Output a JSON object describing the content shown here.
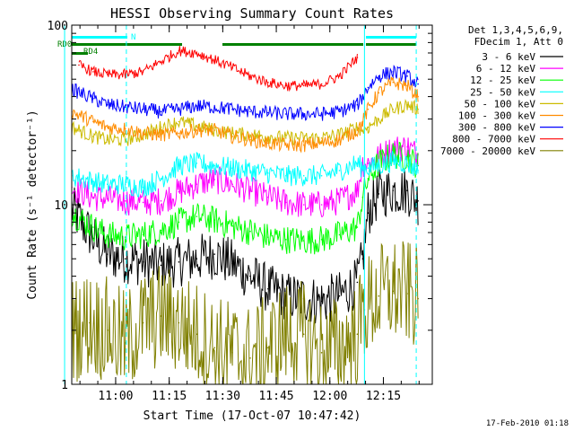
{
  "chart_data": {
    "type": "line",
    "title": "HESSI Observing Summary Count Rates",
    "xlabel": "Start Time (17-Oct-07 10:47:42)",
    "ylabel": "Count Rate (s⁻¹ detector⁻¹)",
    "x_unit": "minutes after 10:47:42",
    "xlim": [
      0,
      101
    ],
    "ylim": [
      1,
      100
    ],
    "y_scale": "log",
    "grid": false,
    "legend_position": "top-right",
    "x_ticks": [
      {
        "label": "11:00",
        "value": 12.3
      },
      {
        "label": "11:15",
        "value": 27.3
      },
      {
        "label": "11:30",
        "value": 42.3
      },
      {
        "label": "11:45",
        "value": 57.3
      },
      {
        "label": "12:00",
        "value": 72.3
      },
      {
        "label": "12:15",
        "value": 87.3
      }
    ],
    "y_ticks": [
      {
        "label": "1",
        "value": 1
      },
      {
        "label": "10",
        "value": 10
      },
      {
        "label": "100",
        "value": 100
      }
    ],
    "legend_header": [
      "Det 1,3,4,5,6,9,",
      "FDecim 1, Att 0"
    ],
    "annotations": {
      "bar_labels": [
        "RD0",
        "RD4",
        "N"
      ],
      "footer_date": "17-Feb-2010 01:18"
    },
    "vertical_markers": [
      {
        "x": -2.0,
        "color": "#00ffff",
        "style": "solid"
      },
      {
        "x": 82.0,
        "color": "#00ffff",
        "style": "solid"
      },
      {
        "x": 15.3,
        "color": "#00ffff",
        "style": "dashed"
      },
      {
        "x": 96.5,
        "color": "#00ffff",
        "style": "dashed"
      }
    ],
    "series": [
      {
        "name": "3 - 6 keV",
        "color": "#000000",
        "x": [
          0,
          6,
          10,
          15,
          20,
          25,
          30,
          35,
          40,
          45,
          50,
          55,
          60,
          65,
          70,
          75,
          80,
          81.5,
          83,
          86,
          90,
          94,
          97
        ],
        "y": [
          9.5,
          6.5,
          5.3,
          5.0,
          4.8,
          4.6,
          4.8,
          5.0,
          5.3,
          4.7,
          4.0,
          3.4,
          3.1,
          3.0,
          2.9,
          3.1,
          3.7,
          5.0,
          9.0,
          11.5,
          12.0,
          12.0,
          10.5
        ]
      },
      {
        "name": "6 - 12 keV",
        "color": "#ff00ff",
        "x": [
          0,
          6,
          10,
          15,
          20,
          25,
          30,
          35,
          40,
          45,
          50,
          55,
          60,
          65,
          70,
          75,
          80,
          81.5,
          83,
          86,
          90,
          94,
          97
        ],
        "y": [
          12.5,
          11.0,
          10.8,
          10.5,
          10.3,
          10.5,
          11.8,
          13.0,
          13.8,
          13.0,
          12.0,
          11.0,
          10.3,
          10.0,
          10.0,
          10.5,
          12.0,
          17.0,
          17.0,
          18.5,
          20.5,
          21.0,
          19.0
        ]
      },
      {
        "name": "12 - 25 keV",
        "color": "#00ff00",
        "x": [
          0,
          6,
          10,
          15,
          20,
          25,
          30,
          35,
          40,
          45,
          50,
          55,
          60,
          65,
          70,
          75,
          80,
          81.5,
          83,
          86,
          90,
          94,
          97
        ],
        "y": [
          9.0,
          7.5,
          6.8,
          6.6,
          6.8,
          7.2,
          8.0,
          8.6,
          8.2,
          7.6,
          7.1,
          6.6,
          6.4,
          6.3,
          6.4,
          6.8,
          7.5,
          11.0,
          14.0,
          17.0,
          19.0,
          18.5,
          16.5
        ]
      },
      {
        "name": "25 - 50 keV",
        "color": "#00ffff",
        "x": [
          0,
          6,
          10,
          15,
          20,
          25,
          30,
          35,
          40,
          45,
          50,
          55,
          60,
          65,
          70,
          75,
          80,
          81.5,
          83,
          86,
          90,
          94,
          97
        ],
        "y": [
          14.5,
          13.5,
          13.0,
          13.0,
          12.5,
          14.0,
          16.5,
          17.0,
          16.5,
          16.0,
          15.5,
          15.0,
          14.5,
          14.5,
          14.5,
          15.5,
          17.0,
          16.0,
          16.0,
          16.5,
          17.5,
          17.0,
          15.5
        ]
      },
      {
        "name": "50 - 100 keV",
        "color": "#ccbb00",
        "x": [
          0,
          6,
          10,
          15,
          20,
          25,
          30,
          35,
          40,
          45,
          50,
          55,
          60,
          65,
          70,
          75,
          80,
          81.5,
          83,
          86,
          90,
          94,
          97
        ],
        "y": [
          27.0,
          24.0,
          23.0,
          23.0,
          24.5,
          27.0,
          29.0,
          27.5,
          26.0,
          25.0,
          24.5,
          24.0,
          23.5,
          23.5,
          23.5,
          24.5,
          27.0,
          26.0,
          27.0,
          30.0,
          34.0,
          36.0,
          34.0
        ]
      },
      {
        "name": "100 - 300 keV",
        "color": "#ff8c00",
        "x": [
          0,
          6,
          10,
          15,
          20,
          25,
          30,
          35,
          40,
          45,
          50,
          55,
          60,
          65,
          70,
          75,
          80,
          81.5,
          83,
          86,
          90,
          94,
          97
        ],
        "y": [
          33.0,
          29.0,
          27.0,
          26.5,
          25.0,
          24.5,
          25.0,
          26.0,
          26.0,
          24.0,
          23.0,
          22.0,
          21.5,
          21.5,
          22.0,
          23.0,
          26.0,
          29.0,
          34.0,
          42.0,
          48.0,
          46.0,
          40.0
        ]
      },
      {
        "name": "300 - 800 keV",
        "color": "#0000ff",
        "x": [
          0,
          6,
          10,
          15,
          20,
          25,
          30,
          35,
          40,
          45,
          50,
          55,
          60,
          65,
          70,
          75,
          80,
          81.5,
          83,
          86,
          90,
          94,
          97
        ],
        "y": [
          44.0,
          39.0,
          36.0,
          35.0,
          34.0,
          33.0,
          34.0,
          35.5,
          35.0,
          34.0,
          33.0,
          32.5,
          32.0,
          32.0,
          32.0,
          33.0,
          36.0,
          40.0,
          45.0,
          52.0,
          55.0,
          52.0,
          47.0
        ]
      },
      {
        "name": "800 - 7000 keV",
        "color": "#ff0000",
        "x": [
          2,
          6,
          10,
          15,
          20,
          30,
          35,
          40,
          45,
          50,
          55,
          60,
          65,
          70,
          75,
          80
        ],
        "y": [
          60.0,
          55.0,
          53.0,
          53.0,
          55.0,
          72.0,
          70.0,
          64.0,
          58.0,
          52.0,
          48.0,
          46.0,
          46.0,
          47.0,
          52.0,
          66.0
        ]
      },
      {
        "name": "7000 - 20000 keV",
        "color": "#808000",
        "x": [
          0,
          5,
          10,
          15,
          20,
          25,
          30,
          35,
          40,
          45,
          50,
          55,
          60,
          65,
          70,
          75,
          80,
          82,
          86,
          90,
          94,
          97
        ],
        "y": [
          2.0,
          2.2,
          2.0,
          1.7,
          2.2,
          2.4,
          2.2,
          1.9,
          1.6,
          1.5,
          1.4,
          1.6,
          1.9,
          1.9,
          1.5,
          1.6,
          1.9,
          2.6,
          3.1,
          3.3,
          3.2,
          3.0
        ]
      }
    ]
  }
}
